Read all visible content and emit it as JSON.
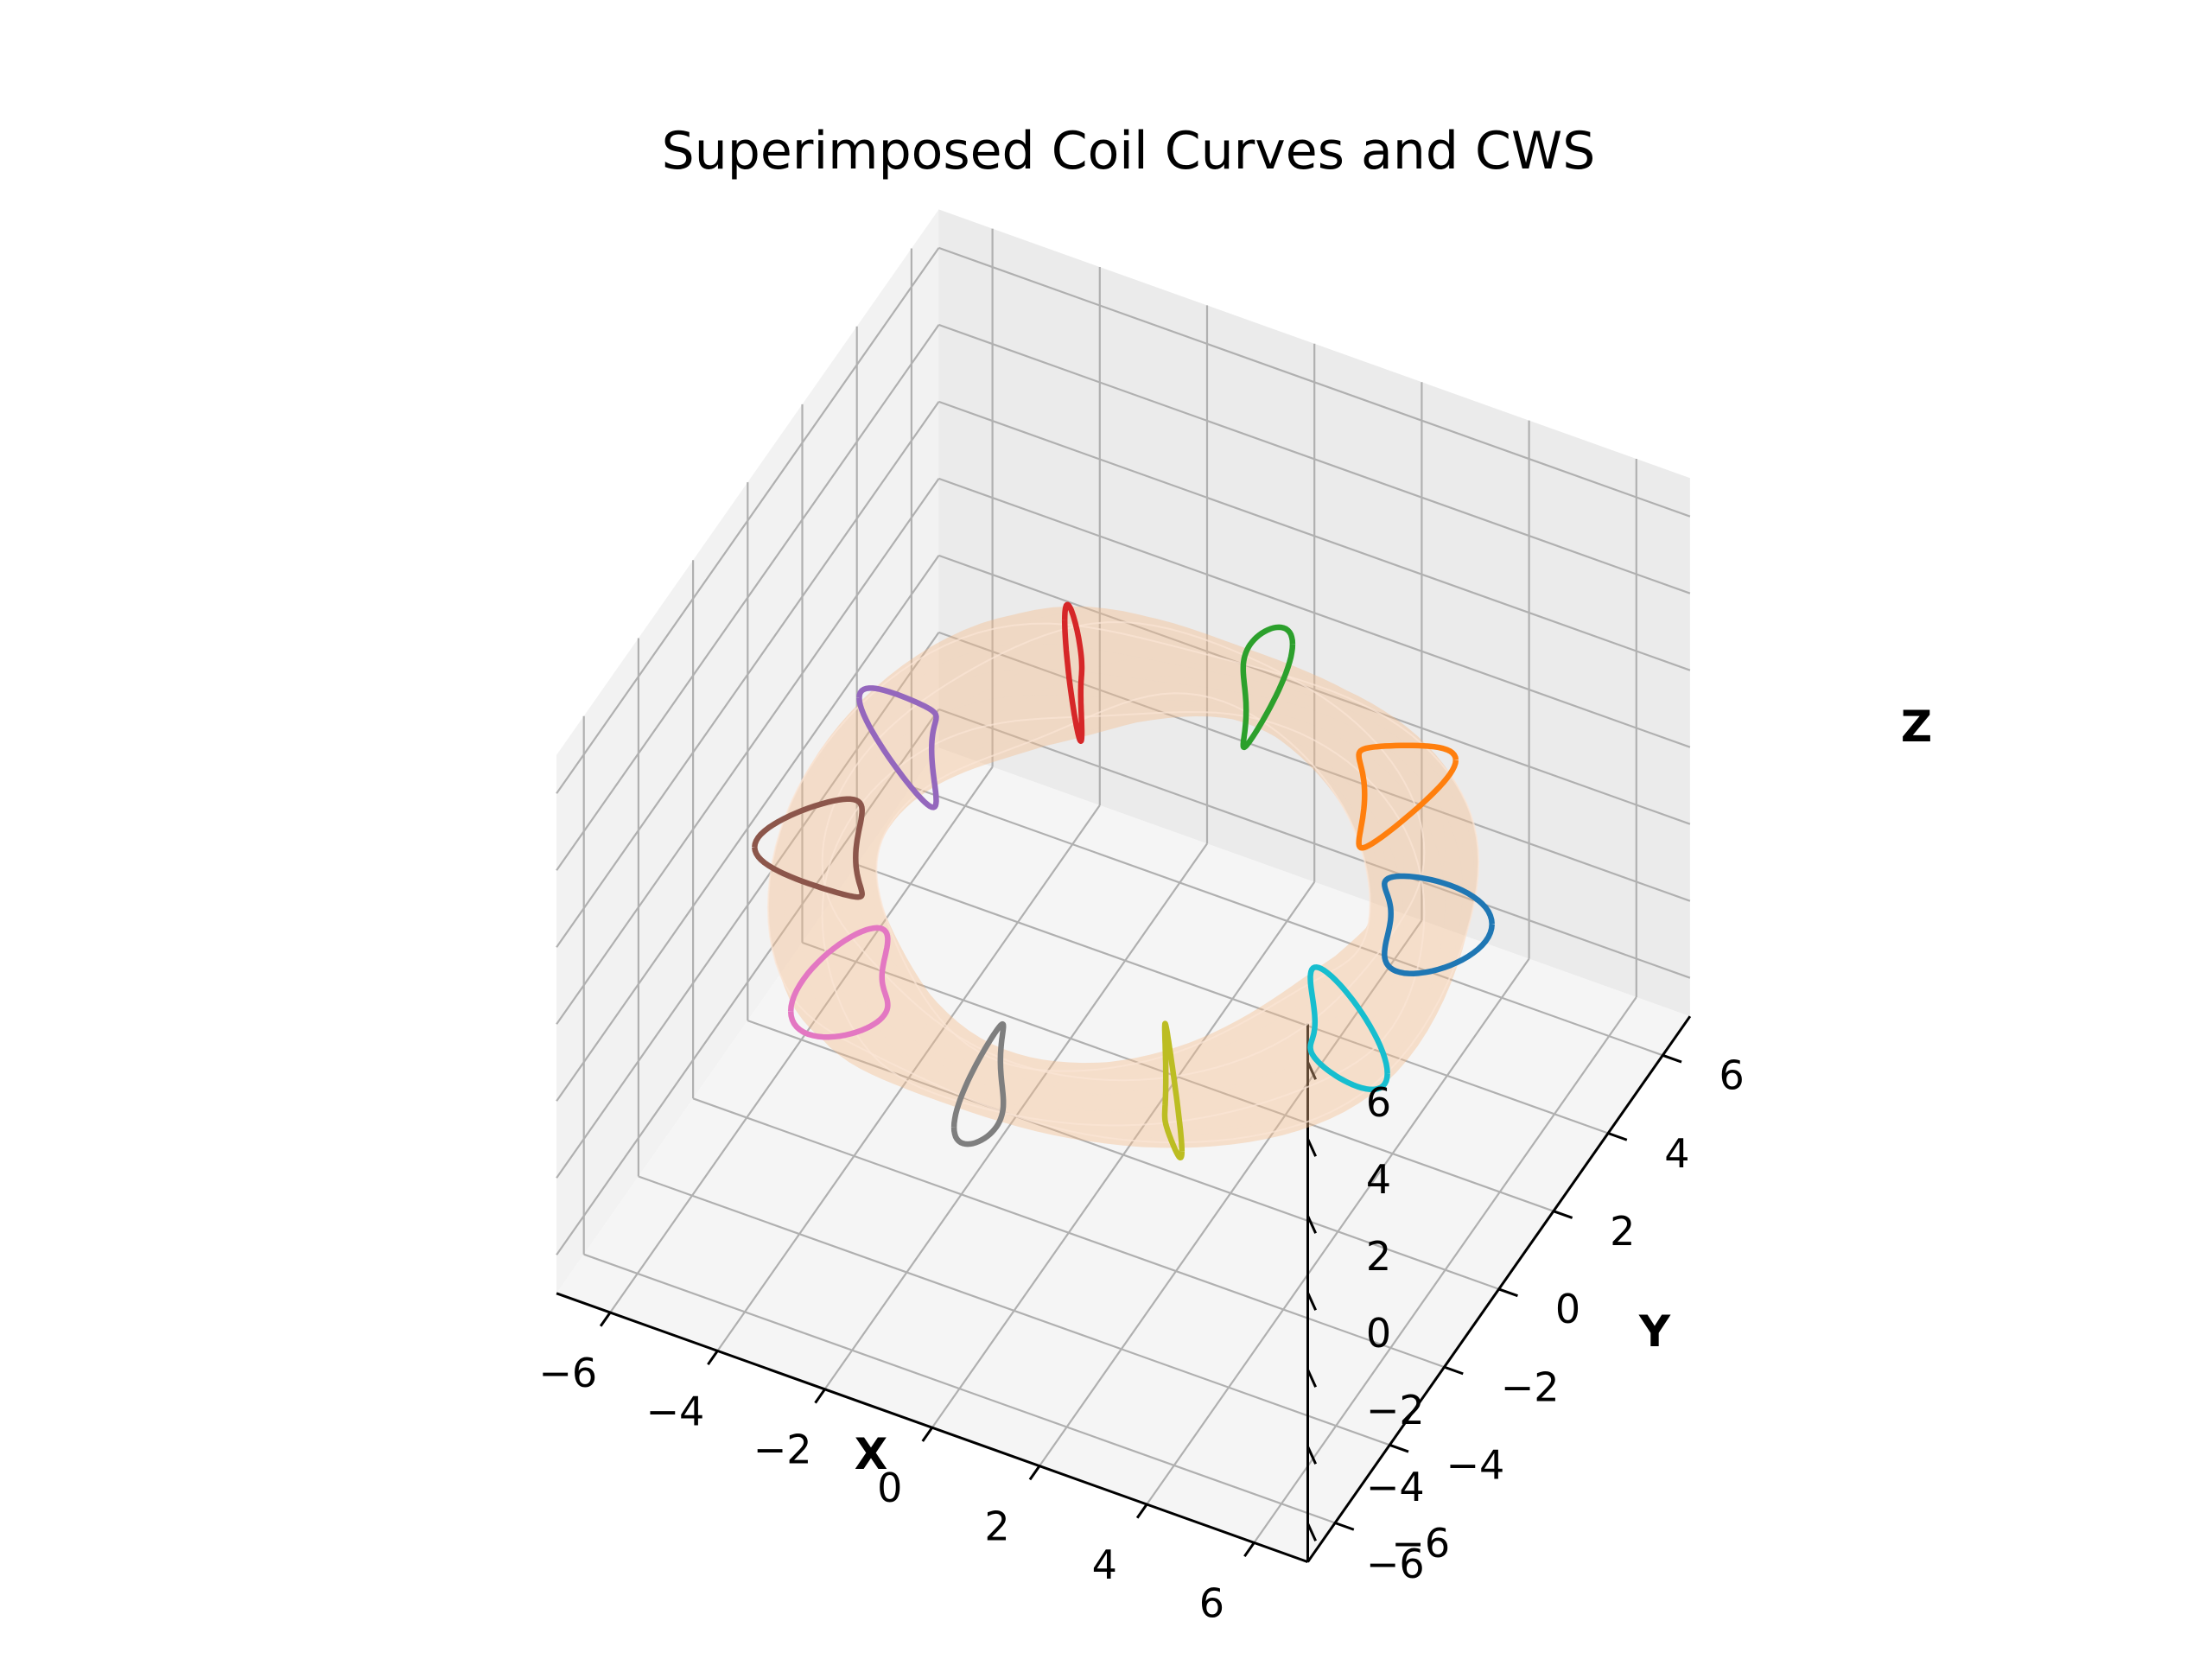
{
  "chart_data": {
    "type": "3d-line-surface",
    "title": "Superimposed Coil Curves and CWS",
    "xlabel": "X",
    "ylabel": "Y",
    "zlabel": "Z",
    "xlim": [
      -7,
      7
    ],
    "ylim": [
      -7,
      7
    ],
    "zlim": [
      -7,
      7
    ],
    "ticks": [
      -6,
      -4,
      -2,
      0,
      2,
      4,
      6
    ],
    "tick_labels": [
      "−6",
      "−4",
      "−2",
      "0",
      "2",
      "4",
      "6"
    ],
    "grid": true,
    "surface": {
      "name": "CWS",
      "color": "#f4b98a",
      "major_radius": 5.0,
      "minor_radius": 0.9,
      "field_periods": 3
    },
    "coils": [
      {
        "phi_deg": 18,
        "color": "#1f77b4"
      },
      {
        "phi_deg": 54,
        "color": "#ff7f0e"
      },
      {
        "phi_deg": 90,
        "color": "#2ca02c"
      },
      {
        "phi_deg": 126,
        "color": "#d62728"
      },
      {
        "phi_deg": 162,
        "color": "#9467bd"
      },
      {
        "phi_deg": 198,
        "color": "#8c564b"
      },
      {
        "phi_deg": 234,
        "color": "#e377c2"
      },
      {
        "phi_deg": 270,
        "color": "#7f7f7f"
      },
      {
        "phi_deg": 306,
        "color": "#bcbd22"
      },
      {
        "phi_deg": 342,
        "color": "#17becf"
      }
    ]
  }
}
